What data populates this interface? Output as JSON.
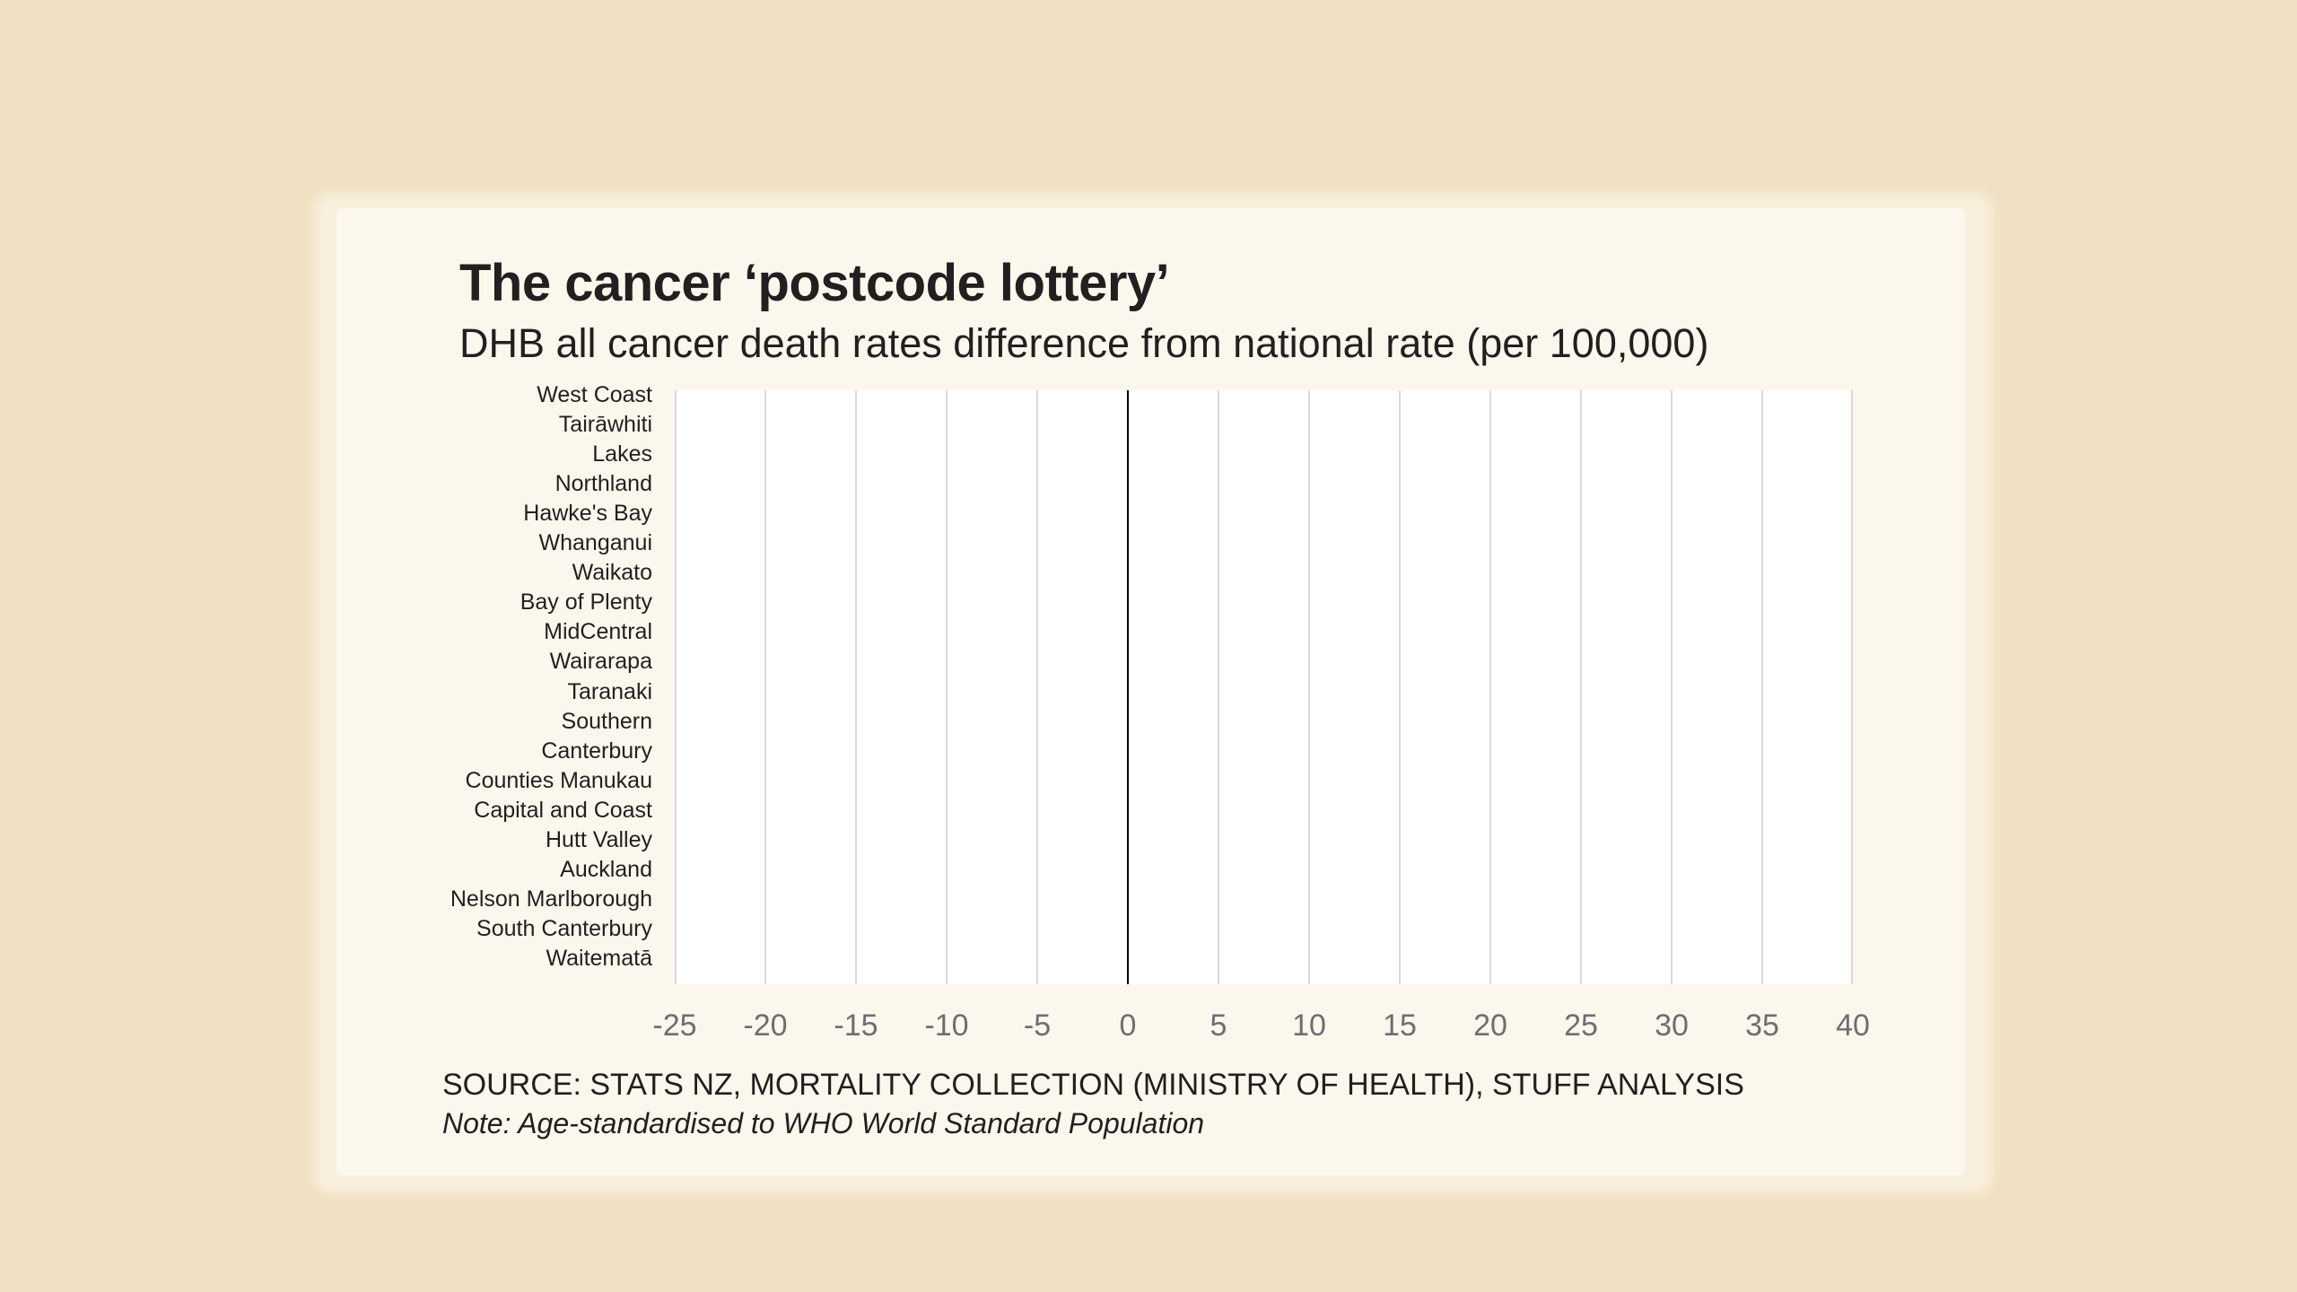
{
  "colors": {
    "background": "#f1e1c4",
    "card": "#fbf7ec",
    "plot_background": "#ffffff",
    "gridline": "#d9d9d9",
    "zero_line": "#000000",
    "text": "#231f20",
    "tick_text": "#6d6e71",
    "bar": "#c0392b"
  },
  "chart_data": {
    "type": "bar",
    "orientation": "horizontal",
    "title": "The cancer ‘postcode lottery’",
    "subtitle": "DHB all cancer death rates difference from national rate (per 100,000)",
    "xlabel": "",
    "ylabel": "",
    "xlim": [
      -25,
      40
    ],
    "x_ticks": [
      -25,
      -20,
      -15,
      -10,
      -5,
      0,
      5,
      10,
      15,
      20,
      25,
      30,
      35,
      40
    ],
    "x_tick_labels": [
      "-25",
      "-20",
      "-15",
      "-10",
      "-5",
      "0",
      "5",
      "10",
      "15",
      "20",
      "25",
      "30",
      "35",
      "40"
    ],
    "grid": true,
    "categories": [
      "West Coast",
      "Tairāwhiti",
      "Lakes",
      "Northland",
      "Hawke's Bay",
      "Whanganui",
      "Waikato",
      "Bay of Plenty",
      "MidCentral",
      "Wairarapa",
      "Taranaki",
      "Southern",
      "Canterbury",
      "Counties Manukau",
      "Capital and Coast",
      "Hutt Valley",
      "Auckland",
      "Nelson Marlborough",
      "South Canterbury",
      "Waitematā"
    ],
    "values": [
      0,
      0,
      0,
      0,
      0,
      0,
      0,
      0,
      0,
      0,
      0,
      0,
      0,
      0,
      0,
      0,
      0,
      0,
      0,
      0
    ],
    "note_on_values": "Bars not rendered in screenshot (zero visible length)"
  },
  "footer": {
    "source": "SOURCE: STATS NZ, MORTALITY COLLECTION (MINISTRY OF HEALTH), STUFF ANALYSIS",
    "note": "Note: Age-standardised to WHO World Standard Population"
  }
}
